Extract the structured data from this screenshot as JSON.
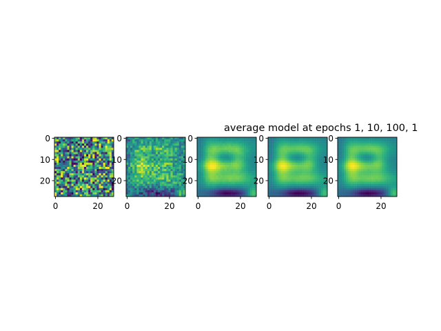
{
  "chart_data": {
    "type": "heatmap",
    "title": "average model at epochs 1, 10, 100, 1",
    "colormap": "viridis",
    "grid": false,
    "panels": [
      {
        "x_ticks": [
          0,
          20
        ],
        "y_ticks": [
          0,
          10,
          20
        ],
        "xlim": [
          0,
          27
        ],
        "ylim": [
          27,
          0
        ]
      },
      {
        "x_ticks": [
          0,
          20
        ],
        "y_ticks": [
          0,
          10,
          20
        ],
        "xlim": [
          0,
          27
        ],
        "ylim": [
          27,
          0
        ]
      },
      {
        "x_ticks": [
          0,
          20
        ],
        "y_ticks": [
          0,
          10,
          20
        ],
        "xlim": [
          0,
          27
        ],
        "ylim": [
          27,
          0
        ]
      },
      {
        "x_ticks": [
          0,
          20
        ],
        "y_ticks": [
          0,
          10,
          20
        ],
        "xlim": [
          0,
          27
        ],
        "ylim": [
          27,
          0
        ]
      },
      {
        "x_ticks": [
          0,
          20
        ],
        "y_ticks": [
          0,
          10,
          20
        ],
        "xlim": [
          0,
          27
        ],
        "ylim": [
          27,
          0
        ]
      }
    ]
  }
}
